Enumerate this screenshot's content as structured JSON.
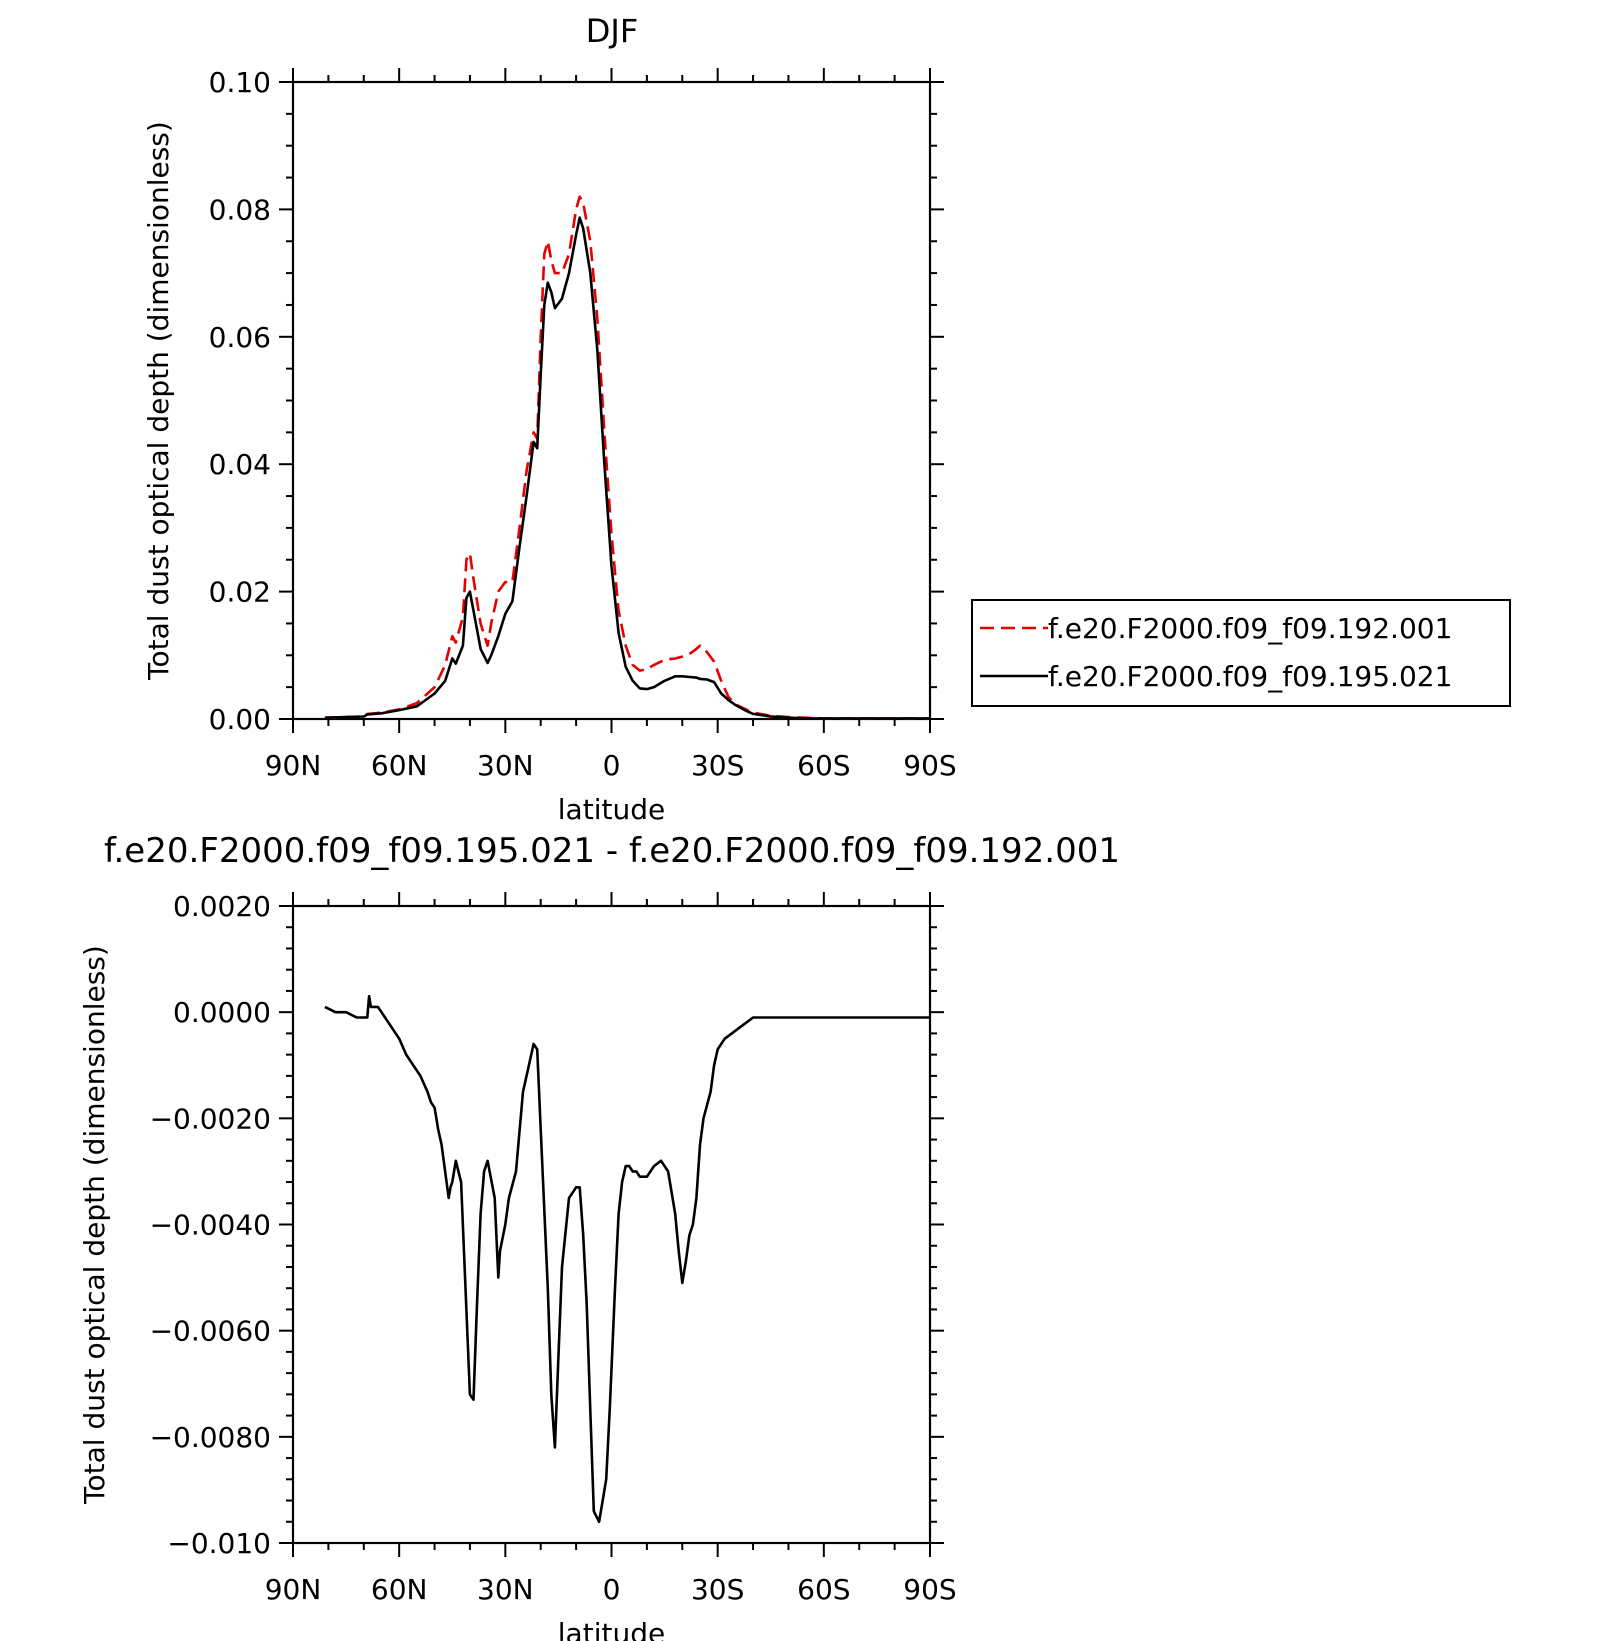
{
  "chart_data": [
    {
      "type": "line",
      "title": "DJF",
      "xlabel": "latitude",
      "ylabel": "Total dust optical depth (dimensionless)",
      "x_unit": "degrees latitude (positive = North)",
      "xlim": [
        90,
        -90
      ],
      "ylim": [
        0,
        0.1
      ],
      "xticks": [
        90,
        60,
        30,
        0,
        -30,
        -60,
        -90
      ],
      "xtick_labels": [
        "90N",
        "60N",
        "30N",
        "0",
        "30S",
        "60S",
        "90S"
      ],
      "yticks": [
        0,
        0.02,
        0.04,
        0.06,
        0.08,
        0.1
      ],
      "ytick_labels": [
        "0.00",
        "0.02",
        "0.04",
        "0.06",
        "0.08",
        "0.10"
      ],
      "legend_position": "right",
      "series": [
        {
          "name": "f.e20.F2000.f09_f09.192.001",
          "color": "#e60000",
          "dash": "dashed",
          "x": [
            81,
            75,
            70,
            69,
            65,
            60,
            55,
            50,
            47,
            45,
            44,
            42,
            41,
            40,
            39,
            37,
            35,
            34,
            32,
            30,
            28,
            26,
            24,
            22,
            21,
            20,
            19,
            18,
            17,
            16,
            14,
            12,
            10,
            9,
            8,
            6,
            4,
            2,
            0,
            -2,
            -4,
            -6,
            -8,
            -10,
            -12,
            -15,
            -18,
            -20,
            -22,
            -24,
            -25,
            -27,
            -29,
            -31,
            -33,
            -35,
            -38,
            -40,
            -45,
            -50,
            -55,
            -60,
            -70,
            -80,
            -90
          ],
          "y": [
            0.0002,
            0.0003,
            0.0004,
            0.0008,
            0.001,
            0.0015,
            0.0025,
            0.005,
            0.0085,
            0.013,
            0.012,
            0.016,
            0.025,
            0.026,
            0.022,
            0.015,
            0.0115,
            0.015,
            0.02,
            0.0215,
            0.0215,
            0.03,
            0.039,
            0.045,
            0.044,
            0.06,
            0.073,
            0.075,
            0.072,
            0.07,
            0.07,
            0.073,
            0.08,
            0.082,
            0.081,
            0.075,
            0.063,
            0.045,
            0.029,
            0.017,
            0.0115,
            0.0085,
            0.0076,
            0.0078,
            0.0085,
            0.0093,
            0.0095,
            0.0098,
            0.0102,
            0.011,
            0.0115,
            0.0105,
            0.009,
            0.006,
            0.0035,
            0.0023,
            0.0015,
            0.001,
            0.0005,
            0.0003,
            0.0002,
            0.0001,
            0.0001,
            0.0001,
            0.0001
          ]
        },
        {
          "name": "f.e20.F2000.f09_f09.195.021",
          "color": "#000000",
          "dash": "solid",
          "x": [
            81,
            75,
            70,
            69,
            65,
            60,
            55,
            50,
            47,
            45,
            44,
            42,
            41,
            40,
            39,
            37,
            35,
            34,
            32,
            30,
            28,
            26,
            24,
            22,
            21,
            20,
            19,
            18,
            17,
            16,
            14,
            12,
            10,
            9,
            8,
            6,
            4,
            2,
            0,
            -2,
            -4,
            -6,
            -8,
            -10,
            -12,
            -15,
            -18,
            -20,
            -22,
            -24,
            -25,
            -27,
            -29,
            -31,
            -33,
            -35,
            -38,
            -40,
            -45,
            -50,
            -55,
            -60,
            -70,
            -80,
            -90
          ],
          "y": [
            0.0002,
            0.0003,
            0.0004,
            0.0007,
            0.0009,
            0.0014,
            0.002,
            0.004,
            0.006,
            0.0095,
            0.0087,
            0.0115,
            0.019,
            0.02,
            0.017,
            0.011,
            0.0088,
            0.01,
            0.013,
            0.0165,
            0.0185,
            0.027,
            0.035,
            0.0435,
            0.0425,
            0.054,
            0.065,
            0.0685,
            0.067,
            0.0645,
            0.066,
            0.07,
            0.076,
            0.0787,
            0.077,
            0.07,
            0.058,
            0.04,
            0.024,
            0.0135,
            0.0082,
            0.006,
            0.0048,
            0.0047,
            0.005,
            0.006,
            0.0067,
            0.0067,
            0.0066,
            0.0065,
            0.0063,
            0.0062,
            0.0058,
            0.004,
            0.003,
            0.0022,
            0.0013,
            0.0008,
            0.0004,
            0.0002,
            0.0001,
            0.0001,
            0.0001,
            0.0001,
            0.0001
          ]
        }
      ]
    },
    {
      "type": "line",
      "title": "f.e20.F2000.f09_f09.195.021 - f.e20.F2000.f09_f09.192.001",
      "xlabel": "latitude",
      "ylabel": "Total dust optical depth (dimensionless)",
      "x_unit": "degrees latitude (positive = North)",
      "xlim": [
        90,
        -90
      ],
      "ylim": [
        -0.01,
        0.002
      ],
      "xticks": [
        90,
        60,
        30,
        0,
        -30,
        -60,
        -90
      ],
      "xtick_labels": [
        "90N",
        "60N",
        "30N",
        "0",
        "30S",
        "60S",
        "90S"
      ],
      "yticks": [
        -0.01,
        -0.008,
        -0.006,
        -0.004,
        -0.002,
        0,
        0.002
      ],
      "ytick_labels": [
        "−0.010",
        "−0.0080",
        "−0.0060",
        "−0.0040",
        "−0.0020",
        "0.0000",
        "0.0020"
      ],
      "series": [
        {
          "color": "#000000",
          "dash": "solid",
          "x": [
            81,
            78,
            75,
            72,
            70,
            69,
            68.5,
            68,
            67,
            66,
            65,
            63,
            60,
            58,
            56,
            54,
            52,
            51,
            50,
            49,
            48,
            46,
            45.5,
            45,
            44,
            42.5,
            40,
            39,
            38,
            37,
            36,
            35,
            33,
            32,
            31.5,
            30,
            29,
            27,
            25,
            23,
            22,
            21,
            20,
            18,
            17,
            16,
            15,
            14,
            12,
            11,
            10,
            9,
            8,
            7,
            6,
            5,
            3.5,
            2.5,
            1.5,
            0.5,
            -1,
            -2,
            -3,
            -4,
            -5,
            -6,
            -7,
            -8,
            -10,
            -12,
            -14,
            -16,
            -18,
            -19,
            -20,
            -21,
            -22,
            -23,
            -24,
            -25,
            -26,
            -28,
            -29,
            -30,
            -31,
            -32,
            -34,
            -36,
            -38,
            -40,
            -45,
            -50,
            -55,
            -60,
            -70,
            -80,
            -90
          ],
          "y": [
            0.0001,
            0,
            0,
            -0.0001,
            -0.0001,
            -0.0001,
            0.0003,
            0.0001,
            0.0001,
            0.0001,
            0,
            -0.0002,
            -0.0005,
            -0.0008,
            -0.001,
            -0.0012,
            -0.0015,
            -0.0017,
            -0.0018,
            -0.0022,
            -0.0025,
            -0.0035,
            -0.0033,
            -0.0032,
            -0.0028,
            -0.0032,
            -0.0072,
            -0.0073,
            -0.0055,
            -0.0038,
            -0.003,
            -0.0028,
            -0.0035,
            -0.005,
            -0.0045,
            -0.004,
            -0.0035,
            -0.003,
            -0.0015,
            -0.0009,
            -0.0006,
            -0.0007,
            -0.0022,
            -0.0052,
            -0.0072,
            -0.0082,
            -0.0065,
            -0.0048,
            -0.0035,
            -0.0034,
            -0.0033,
            -0.0033,
            -0.0042,
            -0.0055,
            -0.0075,
            -0.0094,
            -0.0096,
            -0.0092,
            -0.0088,
            -0.0075,
            -0.0052,
            -0.0038,
            -0.0032,
            -0.0029,
            -0.0029,
            -0.003,
            -0.003,
            -0.0031,
            -0.0031,
            -0.0029,
            -0.0028,
            -0.003,
            -0.0038,
            -0.0045,
            -0.0051,
            -0.0047,
            -0.0042,
            -0.004,
            -0.0035,
            -0.0025,
            -0.002,
            -0.0015,
            -0.001,
            -0.0007,
            -0.0006,
            -0.0005,
            -0.0004,
            -0.0003,
            -0.0002,
            -0.0001,
            -0.0001,
            -0.0001,
            -0.0001,
            -0.0001,
            -0.0001,
            -0.0001,
            -0.0001
          ]
        }
      ]
    }
  ]
}
